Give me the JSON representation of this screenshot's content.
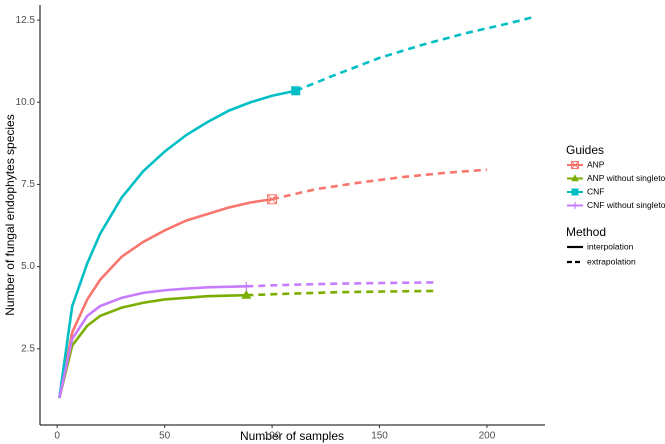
{
  "chart_data": {
    "type": "line",
    "x_label": "Number of samples",
    "y_label": "Number of fungal endophytes species",
    "xlim": [
      -8,
      227
    ],
    "ylim": [
      0.18,
      12.96
    ],
    "xticks": [
      0,
      50,
      100,
      150,
      200
    ],
    "yticks": [
      2.5,
      {
        "value": 5,
        "label": "5.0"
      },
      7.5,
      {
        "value": 10,
        "label": "10.0"
      },
      12.5
    ],
    "legend_title": "Guides",
    "method_title": "Method",
    "methods": [
      "interpolation",
      "extrapolation"
    ],
    "series": [
      {
        "name": "ANP",
        "color": "#f8766d",
        "marker": "square-cross",
        "interpolation": {
          "x": [
            1,
            7,
            14,
            20,
            30,
            40,
            50,
            60,
            70,
            80,
            90,
            100
          ],
          "values": [
            1,
            3.0,
            4.0,
            4.6,
            5.3,
            5.75,
            6.1,
            6.4,
            6.6,
            6.8,
            6.95,
            7.05
          ]
        },
        "extrapolation": {
          "x": [
            100,
            120,
            140,
            160,
            180,
            200
          ],
          "values": [
            7.05,
            7.35,
            7.55,
            7.72,
            7.85,
            7.95
          ]
        },
        "observed": {
          "x": 100,
          "value": 7.05
        }
      },
      {
        "name": "ANP without singletons",
        "color": "#7cae00",
        "marker": "triangle",
        "interpolation": {
          "x": [
            1,
            7,
            14,
            20,
            30,
            40,
            50,
            60,
            70,
            88
          ],
          "values": [
            1,
            2.6,
            3.2,
            3.5,
            3.75,
            3.9,
            4.0,
            4.05,
            4.1,
            4.13
          ]
        },
        "extrapolation": {
          "x": [
            88,
            110,
            130,
            150,
            176
          ],
          "values": [
            4.13,
            4.18,
            4.22,
            4.24,
            4.26
          ]
        },
        "observed": {
          "x": 88,
          "value": 4.13
        }
      },
      {
        "name": "CNF",
        "color": "#00bfc4",
        "marker": "square",
        "interpolation": {
          "x": [
            1,
            7,
            14,
            20,
            30,
            40,
            50,
            60,
            70,
            80,
            90,
            100,
            111
          ],
          "values": [
            1,
            3.8,
            5.1,
            6.0,
            7.1,
            7.9,
            8.5,
            9.0,
            9.4,
            9.75,
            10.0,
            10.2,
            10.35
          ]
        },
        "extrapolation": {
          "x": [
            111,
            130,
            150,
            170,
            190,
            210,
            222
          ],
          "values": [
            10.35,
            10.85,
            11.35,
            11.75,
            12.1,
            12.4,
            12.6
          ]
        },
        "observed": {
          "x": 111,
          "value": 10.35
        }
      },
      {
        "name": "CNF without singletons",
        "color": "#c77cff",
        "marker": "plus",
        "interpolation": {
          "x": [
            1,
            7,
            14,
            20,
            30,
            40,
            50,
            60,
            70,
            88
          ],
          "values": [
            1,
            2.8,
            3.5,
            3.8,
            4.05,
            4.2,
            4.28,
            4.33,
            4.37,
            4.4
          ]
        },
        "extrapolation": {
          "x": [
            88,
            110,
            130,
            150,
            176
          ],
          "values": [
            4.4,
            4.45,
            4.48,
            4.5,
            4.52
          ]
        },
        "observed": {
          "x": 88,
          "value": 4.4
        }
      }
    ]
  }
}
